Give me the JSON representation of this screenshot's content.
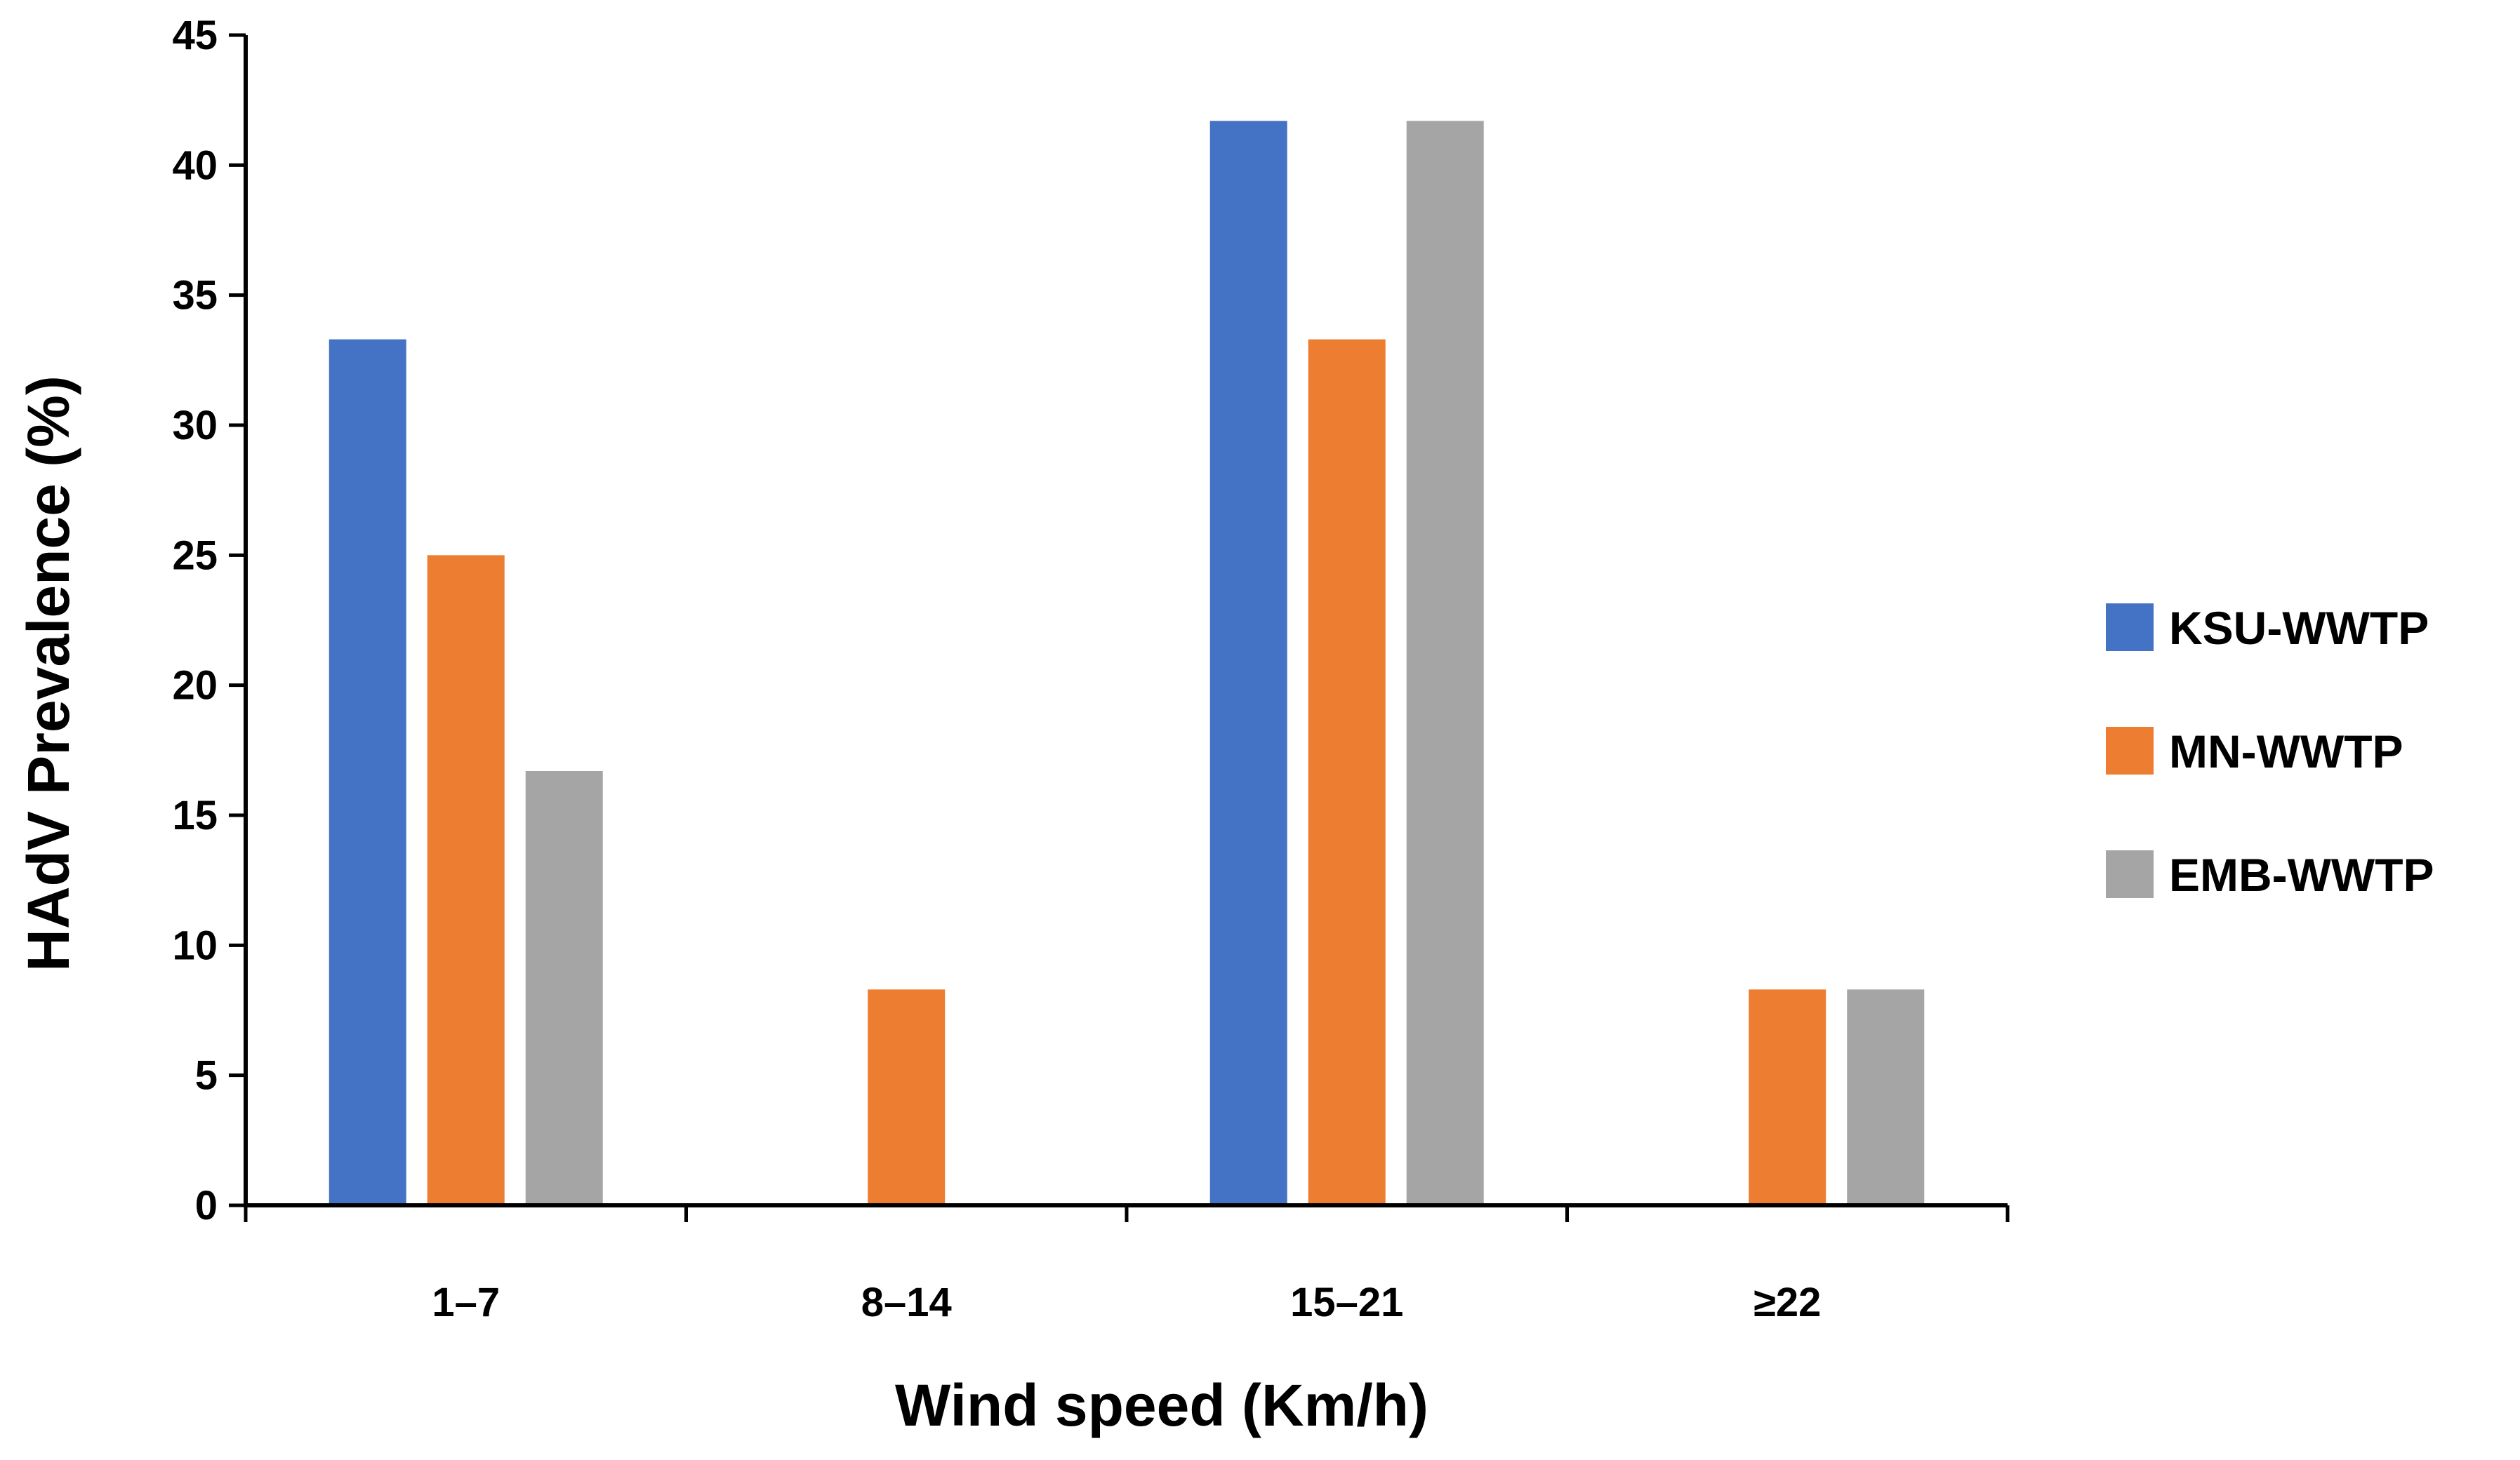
{
  "chart_data": {
    "type": "bar",
    "title": "",
    "xlabel": "Wind speed (Km/h)",
    "ylabel": "HAdV Prevalence (%)",
    "categories": [
      "1–7",
      "8–14",
      "15–21",
      "≥22"
    ],
    "ylim": [
      0,
      45
    ],
    "yticks": [
      0,
      5,
      10,
      15,
      20,
      25,
      30,
      35,
      40,
      45
    ],
    "grid": false,
    "legend_position": "right",
    "series": [
      {
        "name": "KSU-WWTP",
        "color": "#4472C4",
        "values": [
          33.3,
          0,
          41.7,
          0
        ]
      },
      {
        "name": "MN-WWTP",
        "color": "#ED7D31",
        "values": [
          25.0,
          8.3,
          33.3,
          8.3
        ]
      },
      {
        "name": "EMB-WWTP",
        "color": "#A5A5A5",
        "values": [
          16.7,
          0,
          41.7,
          8.3
        ]
      }
    ]
  }
}
